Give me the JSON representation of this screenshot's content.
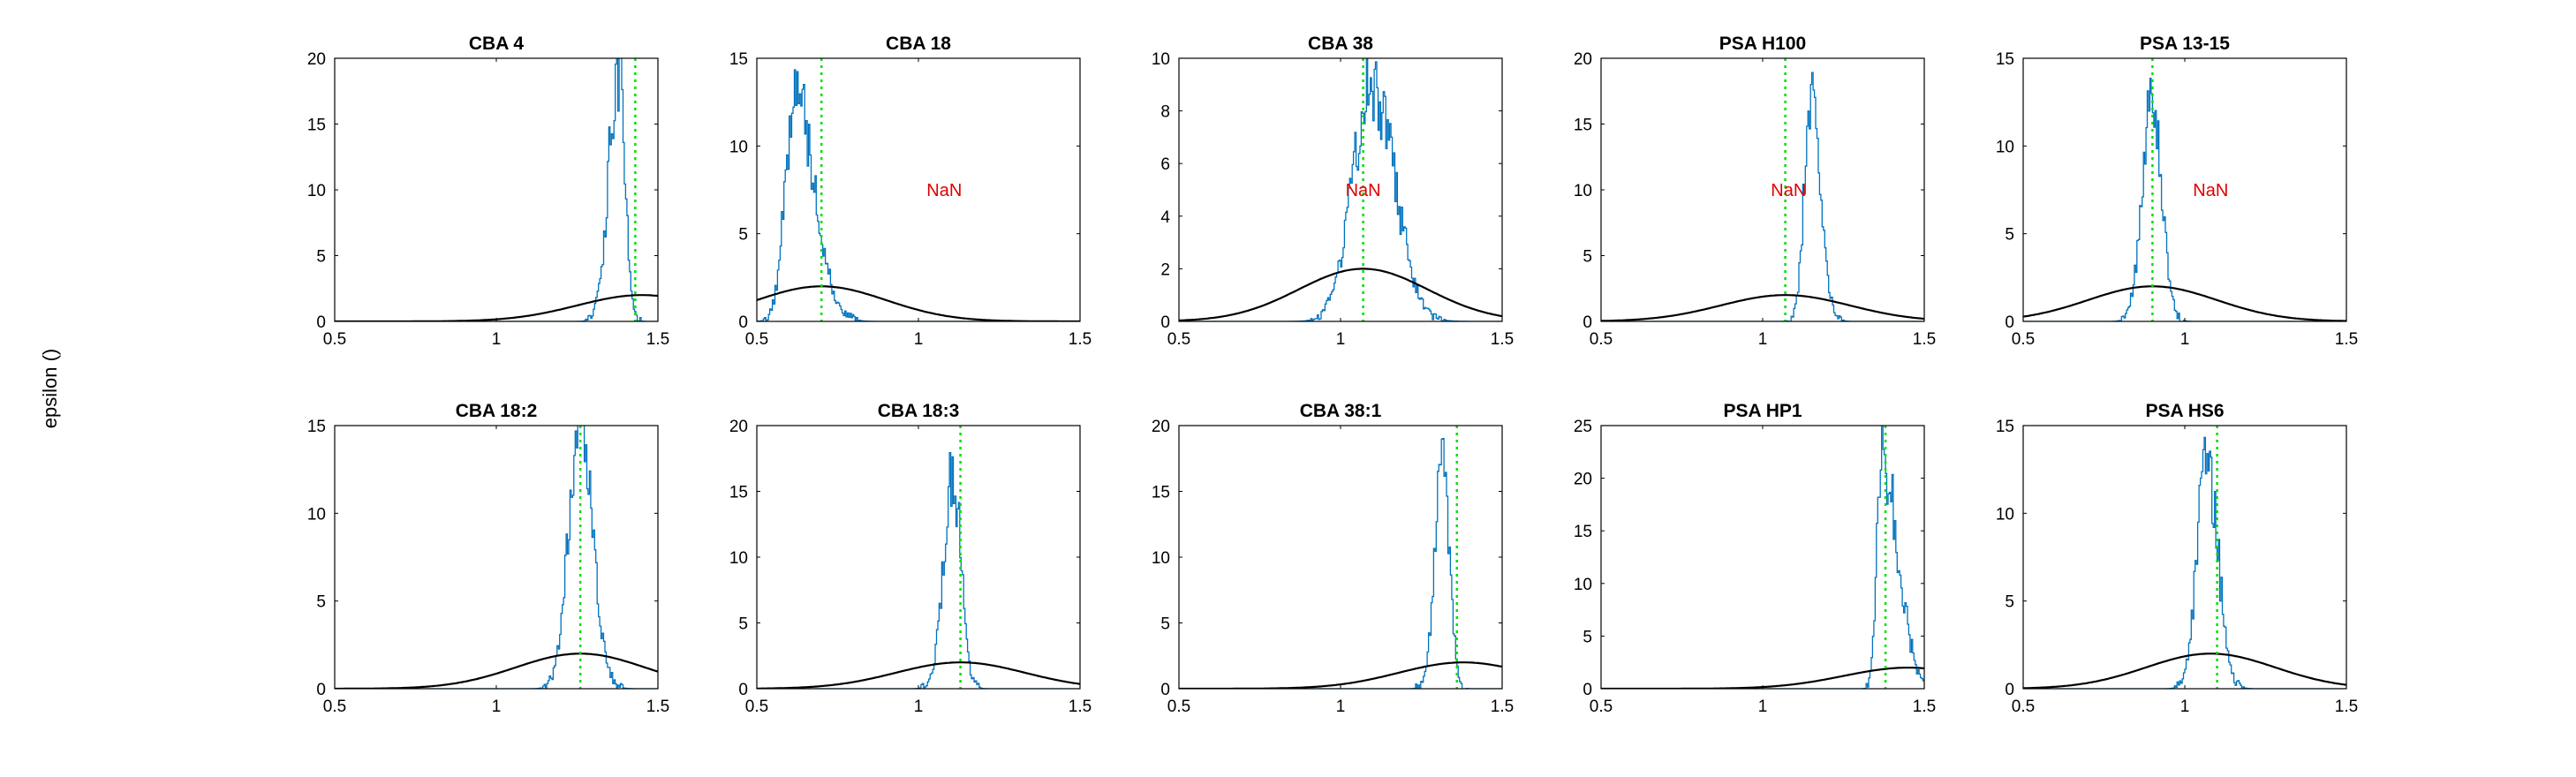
{
  "figure": {
    "ylabel": "epsilon ()",
    "colors": {
      "histogram": "#0072BD",
      "gaussian": "#000000",
      "vline": "#00E000",
      "nan": "#E00000",
      "axis": "#000000"
    }
  },
  "chart_data": [
    {
      "type": "line",
      "title": "CBA 4",
      "xlim": [
        0.5,
        1.5
      ],
      "ylim": [
        0,
        20
      ],
      "xticks": [
        0.5,
        1,
        1.5
      ],
      "xtick_labels": [
        "0.5",
        "1",
        "1.5"
      ],
      "yticks": [
        0,
        5,
        10,
        15,
        20
      ],
      "ytick_labels": [
        "0",
        "5",
        "10",
        "15",
        "20"
      ],
      "histogram": {
        "center": 1.38,
        "peak": 19.5,
        "sigma_left": 0.03,
        "sigma_right": 0.02
      },
      "gaussian": {
        "mean": 1.45,
        "sd": 0.2,
        "peak": 2.0
      },
      "vline_x": 1.43,
      "annotation": ""
    },
    {
      "type": "line",
      "title": "CBA 18",
      "xlim": [
        0.5,
        1.5
      ],
      "ylim": [
        0,
        15
      ],
      "xticks": [
        0.5,
        1,
        1.5
      ],
      "xtick_labels": [
        "0.5",
        "1",
        "1.5"
      ],
      "yticks": [
        0,
        5,
        10,
        15
      ],
      "ytick_labels": [
        "0",
        "5",
        "10",
        "15"
      ],
      "histogram": {
        "center": 0.62,
        "peak": 13.0,
        "sigma_left": 0.03,
        "sigma_right": 0.06
      },
      "gaussian": {
        "mean": 0.7,
        "sd": 0.2,
        "peak": 2.0
      },
      "vline_x": 0.7,
      "annotation": "NaN",
      "annotation_pos": [
        1.08,
        7.5
      ]
    },
    {
      "type": "line",
      "title": "CBA 38",
      "xlim": [
        0.5,
        1.5
      ],
      "ylim": [
        0,
        10
      ],
      "xticks": [
        0.5,
        1,
        1.5
      ],
      "xtick_labels": [
        "0.5",
        "1",
        "1.5"
      ],
      "yticks": [
        0,
        2,
        4,
        6,
        8,
        10
      ],
      "ytick_labels": [
        "0",
        "2",
        "4",
        "6",
        "8",
        "10"
      ],
      "histogram": {
        "center": 1.1,
        "peak": 9.0,
        "sigma_left": 0.06,
        "sigma_right": 0.07
      },
      "gaussian": {
        "mean": 1.07,
        "sd": 0.2,
        "peak": 2.0
      },
      "vline_x": 1.07,
      "annotation": "NaN",
      "annotation_pos": [
        1.07,
        5.0
      ]
    },
    {
      "type": "line",
      "title": "PSA H100",
      "xlim": [
        0.5,
        1.5
      ],
      "ylim": [
        0,
        20
      ],
      "xticks": [
        0.5,
        1,
        1.5
      ],
      "xtick_labels": [
        "0.5",
        "1",
        "1.5"
      ],
      "yticks": [
        0,
        5,
        10,
        15,
        20
      ],
      "ytick_labels": [
        "0",
        "5",
        "10",
        "15",
        "20"
      ],
      "histogram": {
        "center": 1.15,
        "peak": 17.0,
        "sigma_left": 0.02,
        "sigma_right": 0.03
      },
      "gaussian": {
        "mean": 1.07,
        "sd": 0.2,
        "peak": 2.0
      },
      "vline_x": 1.07,
      "annotation": "NaN",
      "annotation_pos": [
        1.08,
        10.0
      ]
    },
    {
      "type": "line",
      "title": "PSA 13-15",
      "xlim": [
        0.5,
        1.5
      ],
      "ylim": [
        0,
        15
      ],
      "xticks": [
        0.5,
        1,
        1.5
      ],
      "xtick_labels": [
        "0.5",
        "1",
        "1.5"
      ],
      "yticks": [
        0,
        5,
        10,
        15
      ],
      "ytick_labels": [
        "0",
        "5",
        "10",
        "15"
      ],
      "histogram": {
        "center": 0.9,
        "peak": 12.8,
        "sigma_left": 0.03,
        "sigma_right": 0.03
      },
      "gaussian": {
        "mean": 0.9,
        "sd": 0.2,
        "peak": 2.0
      },
      "vline_x": 0.9,
      "annotation": "NaN",
      "annotation_pos": [
        1.08,
        7.5
      ]
    },
    {
      "type": "line",
      "title": "CBA 18:2",
      "xlim": [
        0.5,
        1.5
      ],
      "ylim": [
        0,
        15
      ],
      "xticks": [
        0.5,
        1,
        1.5
      ],
      "xtick_labels": [
        "0.5",
        "1",
        "1.5"
      ],
      "yticks": [
        0,
        5,
        10,
        15
      ],
      "ytick_labels": [
        "0",
        "5",
        "10",
        "15"
      ],
      "histogram": {
        "center": 1.26,
        "peak": 14.8,
        "sigma_left": 0.035,
        "sigma_right": 0.04
      },
      "gaussian": {
        "mean": 1.26,
        "sd": 0.2,
        "peak": 2.0
      },
      "vline_x": 1.26,
      "annotation": ""
    },
    {
      "type": "line",
      "title": "CBA 18:3",
      "xlim": [
        0.5,
        1.5
      ],
      "ylim": [
        0,
        20
      ],
      "xticks": [
        0.5,
        1,
        1.5
      ],
      "xtick_labels": [
        "0.5",
        "1",
        "1.5"
      ],
      "yticks": [
        0,
        5,
        10,
        15,
        20
      ],
      "ytick_labels": [
        "0",
        "5",
        "10",
        "15",
        "20"
      ],
      "histogram": {
        "center": 1.11,
        "peak": 16.0,
        "sigma_left": 0.03,
        "sigma_right": 0.025
      },
      "gaussian": {
        "mean": 1.13,
        "sd": 0.2,
        "peak": 2.0
      },
      "vline_x": 1.13,
      "annotation": ""
    },
    {
      "type": "line",
      "title": "CBA 38:1",
      "xlim": [
        0.5,
        1.5
      ],
      "ylim": [
        0,
        20
      ],
      "xticks": [
        0.5,
        1,
        1.5
      ],
      "xtick_labels": [
        "0.5",
        "1",
        "1.5"
      ],
      "yticks": [
        0,
        5,
        10,
        15,
        20
      ],
      "ytick_labels": [
        "0",
        "5",
        "10",
        "15",
        "20"
      ],
      "histogram": {
        "center": 1.32,
        "peak": 17.5,
        "sigma_left": 0.025,
        "sigma_right": 0.02
      },
      "gaussian": {
        "mean": 1.38,
        "sd": 0.2,
        "peak": 2.0
      },
      "vline_x": 1.36,
      "annotation": ""
    },
    {
      "type": "line",
      "title": "PSA HP1",
      "xlim": [
        0.5,
        1.5
      ],
      "ylim": [
        0,
        25
      ],
      "xticks": [
        0.5,
        1,
        1.5
      ],
      "xtick_labels": [
        "0.5",
        "1",
        "1.5"
      ],
      "yticks": [
        0,
        5,
        10,
        15,
        20,
        25
      ],
      "ytick_labels": [
        "0",
        "5",
        "10",
        "15",
        "20",
        "25"
      ],
      "histogram": {
        "center": 1.37,
        "peak": 22.0,
        "sigma_left": 0.015,
        "sigma_right": 0.05
      },
      "gaussian": {
        "mean": 1.45,
        "sd": 0.2,
        "peak": 2.0
      },
      "vline_x": 1.38,
      "annotation": ""
    },
    {
      "type": "line",
      "title": "PSA HS6",
      "xlim": [
        0.5,
        1.5
      ],
      "ylim": [
        0,
        15
      ],
      "xticks": [
        0.5,
        1,
        1.5
      ],
      "xtick_labels": [
        "0.5",
        "1",
        "1.5"
      ],
      "yticks": [
        0,
        5,
        10,
        15
      ],
      "ytick_labels": [
        "0",
        "5",
        "10",
        "15"
      ],
      "histogram": {
        "center": 1.07,
        "peak": 13.0,
        "sigma_left": 0.03,
        "sigma_right": 0.035
      },
      "gaussian": {
        "mean": 1.08,
        "sd": 0.2,
        "peak": 2.0
      },
      "vline_x": 1.1,
      "annotation": ""
    }
  ]
}
